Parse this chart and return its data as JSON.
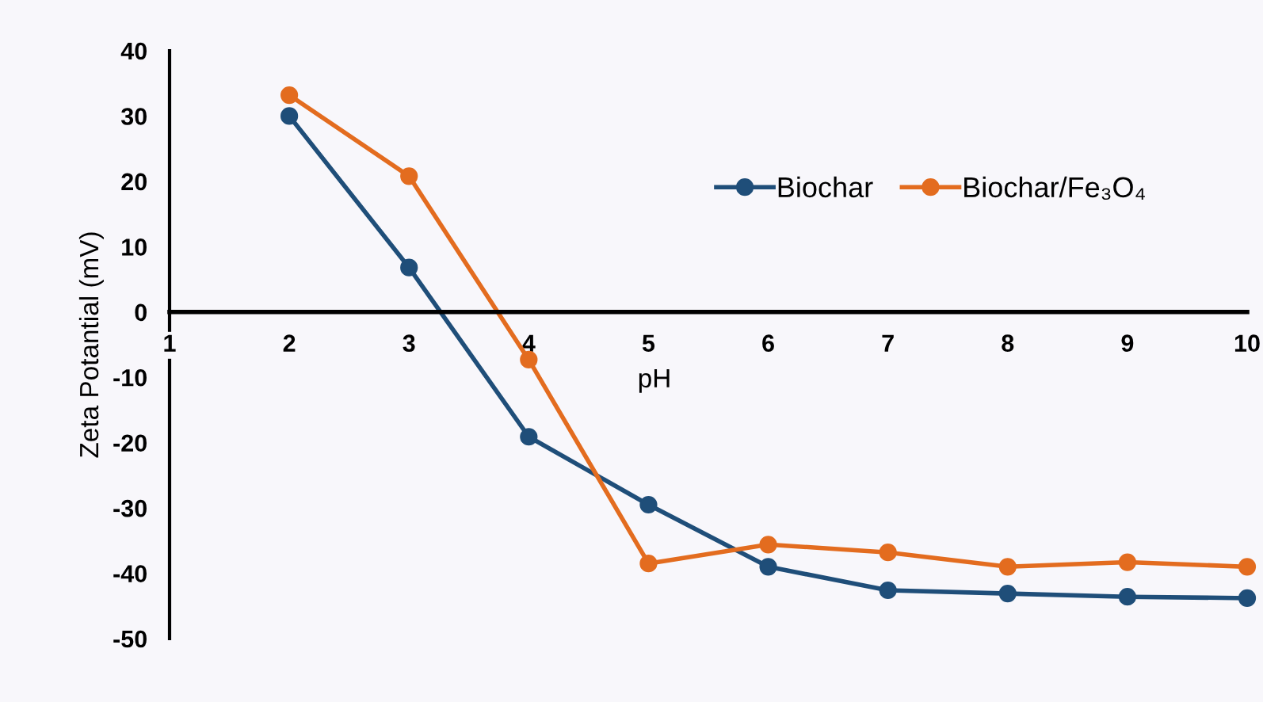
{
  "chart_data": {
    "type": "line",
    "xlabel": "pH",
    "ylabel": "Zeta Potantial (mV)",
    "x": [
      2,
      3,
      4,
      5,
      6,
      7,
      8,
      9,
      10
    ],
    "series": [
      {
        "name": "Biochar",
        "color": "#1f4e79",
        "values": [
          30,
          6.8,
          -19.1,
          -29.5,
          -39,
          -42.6,
          -43.1,
          -43.6,
          -43.8
        ]
      },
      {
        "name": "Biochar/Fe₃O₄",
        "color": "#e36c1f",
        "values": [
          33.2,
          20.8,
          -7.3,
          -38.5,
          -35.6,
          -36.8,
          -39,
          -38.3,
          -39
        ]
      }
    ],
    "xlim": [
      1,
      10
    ],
    "xticks": [
      1,
      2,
      3,
      4,
      5,
      6,
      7,
      8,
      9,
      10
    ],
    "ylim": [
      -50,
      40
    ],
    "yticks": [
      -50,
      -40,
      -30,
      -20,
      -10,
      0,
      10,
      20,
      30,
      40
    ],
    "grid": false,
    "legend": "top right",
    "marker": "circle",
    "line_style": "solid"
  }
}
